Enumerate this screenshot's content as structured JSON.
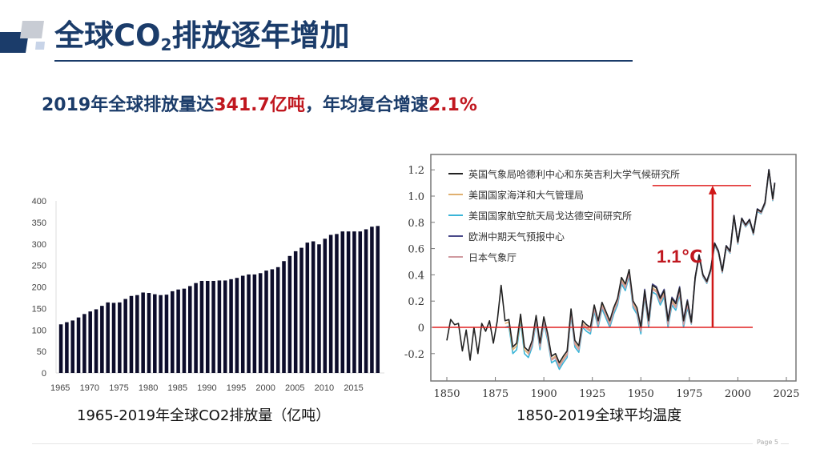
{
  "header": {
    "title_part1": "全球CO",
    "title_sub": "2",
    "title_part2": "排放逐年增加"
  },
  "subtitle": {
    "prefix": "2019年全球排放量达",
    "emission_value": "341.7亿吨",
    "middle": "，年均复合增速",
    "growth_rate": "2.1%"
  },
  "colors": {
    "brand_navy": "#1b3c6a",
    "highlight_red": "#c0171f",
    "bar_fill": "#0d0d2b"
  },
  "footer": {
    "page_label": "Page 5"
  },
  "chart_data": [
    {
      "type": "bar",
      "title": "1965-2019年全球CO2排放量（亿吨）",
      "xlabel": "",
      "ylabel": "",
      "ylim": [
        0,
        400
      ],
      "yticks": [
        0,
        50,
        100,
        150,
        200,
        250,
        300,
        350,
        400
      ],
      "xtick_labels": [
        "1965",
        "1970",
        "1975",
        "1980",
        "1985",
        "1990",
        "1995",
        "2000",
        "2005",
        "2010",
        "2015"
      ],
      "grid": false,
      "categories": [
        1965,
        1966,
        1967,
        1968,
        1969,
        1970,
        1971,
        1972,
        1973,
        1974,
        1975,
        1976,
        1977,
        1978,
        1979,
        1980,
        1981,
        1982,
        1983,
        1984,
        1985,
        1986,
        1987,
        1988,
        1989,
        1990,
        1991,
        1992,
        1993,
        1994,
        1995,
        1996,
        1997,
        1998,
        1999,
        2000,
        2001,
        2002,
        2003,
        2004,
        2005,
        2006,
        2007,
        2008,
        2009,
        2010,
        2011,
        2012,
        2013,
        2014,
        2015,
        2016,
        2017,
        2018,
        2019
      ],
      "values": [
        113,
        118,
        122,
        129,
        137,
        143,
        148,
        156,
        164,
        163,
        164,
        172,
        179,
        181,
        187,
        186,
        183,
        181,
        182,
        190,
        194,
        196,
        202,
        209,
        214,
        214,
        214,
        215,
        215,
        218,
        221,
        226,
        229,
        229,
        232,
        238,
        241,
        246,
        260,
        272,
        283,
        291,
        303,
        306,
        299,
        312,
        321,
        323,
        329,
        329,
        329,
        329,
        334,
        340,
        341.7
      ]
    },
    {
      "type": "line",
      "title": "1850-2019全球平均温度",
      "xlabel": "",
      "ylabel": "",
      "xlim": [
        1840,
        2030
      ],
      "ylim": [
        -0.4,
        1.3
      ],
      "xticks": [
        1850,
        1875,
        1900,
        1925,
        1950,
        1975,
        2000,
        2025
      ],
      "yticks": [
        -0.2,
        0,
        0.2,
        0.4,
        0.6,
        0.8,
        1.0,
        1.2
      ],
      "ytick_labels": [
        "-0.2",
        "0",
        "0.2",
        "0.4",
        "0.6",
        "0.8",
        "1.0",
        "1.2"
      ],
      "legend_position": "upper-left",
      "legend": [
        {
          "name": "英国气象局哈德利中心和东英吉利大学气候研究所",
          "color": "#222222"
        },
        {
          "name": "美国国家海洋和大气管理局",
          "color": "#e0b070"
        },
        {
          "name": "美国国家航空航天局戈达德空间研究所",
          "color": "#3ab5d8"
        },
        {
          "name": "欧洲中期天气预报中心",
          "color": "#4a4a8a"
        },
        {
          "name": "日本气象厅",
          "color": "#d09aa0"
        }
      ],
      "annotations": [
        {
          "text": "1.1℃",
          "color": "#c0171f",
          "type": "arrow-span",
          "from_y": 0,
          "to_y": 1.08,
          "x": 1987
        },
        {
          "type": "hline",
          "y": 0,
          "color": "#e02020"
        },
        {
          "type": "hline",
          "y": 1.08,
          "color": "#e02020",
          "x_range": [
            1956,
            2008
          ]
        }
      ],
      "series": [
        {
          "name": "英国气象局哈德利中心和东英吉利大学气候研究所",
          "x": [
            1850,
            1852,
            1854,
            1856,
            1858,
            1860,
            1862,
            1864,
            1866,
            1868,
            1870,
            1872,
            1874,
            1876,
            1878,
            1880,
            1882,
            1884,
            1886,
            1888,
            1890,
            1892,
            1894,
            1896,
            1898,
            1900,
            1902,
            1904,
            1906,
            1908,
            1910,
            1912,
            1914,
            1916,
            1918,
            1920,
            1922,
            1924,
            1926,
            1928,
            1930,
            1932,
            1934,
            1936,
            1938,
            1940,
            1942,
            1944,
            1946,
            1948,
            1950,
            1952,
            1954,
            1956,
            1958,
            1960,
            1962,
            1964,
            1966,
            1968,
            1970,
            1972,
            1974,
            1976,
            1978,
            1980,
            1982,
            1984,
            1986,
            1988,
            1990,
            1992,
            1994,
            1996,
            1998,
            2000,
            2002,
            2004,
            2006,
            2008,
            2010,
            2012,
            2014,
            2016,
            2018,
            2019
          ],
          "values": [
            -0.1,
            0.06,
            0.02,
            0.03,
            -0.18,
            -0.02,
            -0.25,
            -0.0,
            -0.2,
            0.03,
            -0.03,
            0.05,
            -0.12,
            0.05,
            0.32,
            0.05,
            0.06,
            -0.15,
            -0.12,
            0.1,
            -0.15,
            -0.18,
            -0.1,
            0.09,
            -0.12,
            0.08,
            -0.05,
            -0.22,
            -0.2,
            -0.27,
            -0.22,
            -0.18,
            0.14,
            -0.1,
            -0.14,
            0.05,
            0.02,
            0.0,
            0.17,
            0.05,
            0.19,
            0.12,
            0.05,
            0.15,
            0.22,
            0.38,
            0.33,
            0.44,
            0.2,
            0.15,
            0.0,
            0.28,
            0.05,
            0.32,
            0.3,
            0.22,
            0.28,
            0.05,
            0.22,
            0.18,
            0.3,
            0.05,
            0.2,
            0.04,
            0.38,
            0.55,
            0.4,
            0.35,
            0.44,
            0.64,
            0.58,
            0.43,
            0.62,
            0.58,
            0.85,
            0.65,
            0.83,
            0.78,
            0.82,
            0.72,
            0.9,
            0.88,
            0.95,
            1.2,
            0.98,
            1.1
          ]
        }
      ]
    }
  ],
  "captions": {
    "left": "1965-2019年全球CO2排放量（亿吨）",
    "right": "1850-2019全球平均温度"
  },
  "right_annotation": {
    "label": "1.1℃"
  }
}
